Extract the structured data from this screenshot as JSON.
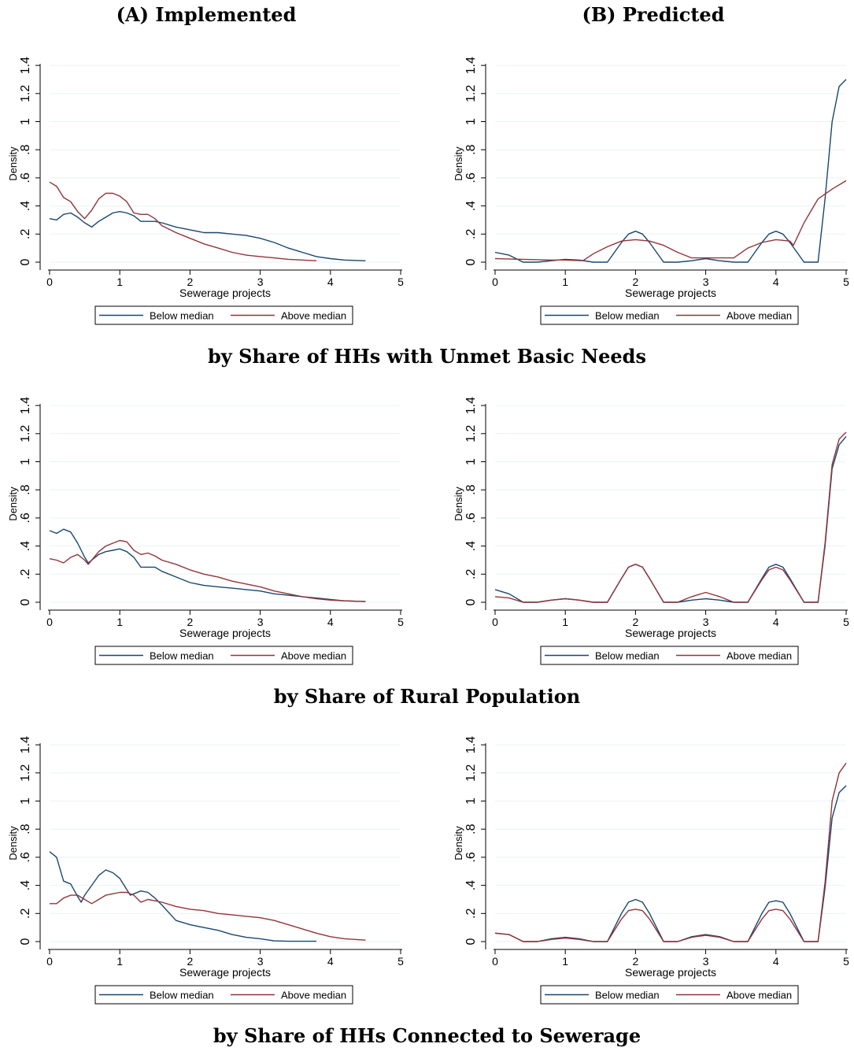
{
  "figure": {
    "col_titles": [
      "(A) Implemented",
      "(B) Predicted"
    ],
    "row_titles": [
      "by Share of HHs with Unmet Basic Needs",
      "by Share of Rural Population",
      "by Share of HHs Connected to Sewerage"
    ]
  },
  "colors": {
    "below_median": "#1a476f",
    "above_median": "#90353b"
  },
  "chart_data": [
    {
      "type": "line",
      "row": 0,
      "col": 0,
      "xlabel": "Sewerage projects",
      "ylabel": "Density",
      "xlim": [
        0,
        5
      ],
      "ylim": [
        0,
        1.4
      ],
      "xticks": [
        "0",
        "1",
        "2",
        "3",
        "4",
        "5"
      ],
      "yticks": [
        "0",
        ".2",
        ".4",
        ".6",
        ".8",
        "1",
        "1.2",
        "1.4"
      ],
      "grid": true,
      "legend_position": "bottom",
      "series": [
        {
          "name": "Below median",
          "x": [
            0,
            0.1,
            0.2,
            0.3,
            0.4,
            0.5,
            0.6,
            0.7,
            0.8,
            0.9,
            1.0,
            1.1,
            1.2,
            1.3,
            1.4,
            1.5,
            1.6,
            1.8,
            2.0,
            2.2,
            2.4,
            2.6,
            2.8,
            3.0,
            3.2,
            3.4,
            3.6,
            3.8,
            4.0,
            4.2,
            4.5
          ],
          "y": [
            0.31,
            0.3,
            0.34,
            0.35,
            0.32,
            0.28,
            0.25,
            0.29,
            0.32,
            0.35,
            0.36,
            0.35,
            0.33,
            0.29,
            0.29,
            0.29,
            0.28,
            0.25,
            0.23,
            0.21,
            0.21,
            0.2,
            0.19,
            0.17,
            0.14,
            0.1,
            0.07,
            0.04,
            0.025,
            0.015,
            0.01
          ]
        },
        {
          "name": "Above median",
          "x": [
            0,
            0.1,
            0.2,
            0.3,
            0.4,
            0.5,
            0.6,
            0.7,
            0.8,
            0.9,
            1.0,
            1.1,
            1.2,
            1.3,
            1.4,
            1.5,
            1.6,
            1.8,
            2.0,
            2.2,
            2.4,
            2.6,
            2.8,
            3.0,
            3.2,
            3.4,
            3.6,
            3.8
          ],
          "y": [
            0.57,
            0.54,
            0.46,
            0.43,
            0.36,
            0.31,
            0.37,
            0.45,
            0.49,
            0.49,
            0.47,
            0.43,
            0.35,
            0.34,
            0.34,
            0.31,
            0.26,
            0.21,
            0.17,
            0.13,
            0.1,
            0.07,
            0.05,
            0.04,
            0.03,
            0.02,
            0.015,
            0.01
          ]
        }
      ]
    },
    {
      "type": "line",
      "row": 0,
      "col": 1,
      "xlabel": "Sewerage projects",
      "ylabel": "Density",
      "xlim": [
        0,
        5
      ],
      "ylim": [
        0,
        1.4
      ],
      "xticks": [
        "0",
        "1",
        "2",
        "3",
        "4",
        "5"
      ],
      "yticks": [
        "0",
        ".2",
        ".4",
        ".6",
        ".8",
        "1",
        "1.2",
        "1.4"
      ],
      "grid": true,
      "legend_position": "bottom",
      "series": [
        {
          "name": "Below median",
          "x": [
            0,
            0.2,
            0.4,
            0.6,
            0.8,
            1.0,
            1.2,
            1.4,
            1.6,
            1.8,
            1.9,
            2.0,
            2.1,
            2.2,
            2.4,
            2.6,
            2.8,
            3.0,
            3.2,
            3.4,
            3.6,
            3.8,
            3.9,
            4.0,
            4.1,
            4.2,
            4.4,
            4.6,
            4.7,
            4.8,
            4.9,
            5.0
          ],
          "y": [
            0.07,
            0.05,
            0.0,
            0.0,
            0.01,
            0.02,
            0.015,
            0.0,
            0.0,
            0.14,
            0.2,
            0.22,
            0.2,
            0.14,
            0.0,
            0.0,
            0.01,
            0.025,
            0.01,
            0.0,
            0.0,
            0.14,
            0.2,
            0.22,
            0.2,
            0.14,
            0.0,
            0.0,
            0.45,
            1.0,
            1.25,
            1.3
          ]
        },
        {
          "name": "Above median",
          "x": [
            0,
            0.4,
            0.8,
            1.0,
            1.25,
            1.4,
            1.6,
            1.8,
            2.0,
            2.2,
            2.4,
            2.6,
            2.8,
            3.0,
            3.2,
            3.4,
            3.6,
            3.8,
            4.0,
            4.2,
            4.25,
            4.4,
            4.6,
            4.8,
            5.0
          ],
          "y": [
            0.025,
            0.02,
            0.015,
            0.015,
            0.01,
            0.06,
            0.11,
            0.15,
            0.16,
            0.15,
            0.12,
            0.07,
            0.03,
            0.03,
            0.03,
            0.03,
            0.1,
            0.14,
            0.16,
            0.15,
            0.12,
            0.28,
            0.45,
            0.52,
            0.58
          ]
        }
      ]
    },
    {
      "type": "line",
      "row": 1,
      "col": 0,
      "xlabel": "Sewerage projects",
      "ylabel": "Density",
      "xlim": [
        0,
        5
      ],
      "ylim": [
        0,
        1.4
      ],
      "xticks": [
        "0",
        "1",
        "2",
        "3",
        "4",
        "5"
      ],
      "yticks": [
        "0",
        ".2",
        ".4",
        ".6",
        ".8",
        "1",
        "1.2",
        "1.4"
      ],
      "grid": true,
      "legend_position": "bottom",
      "series": [
        {
          "name": "Below median",
          "x": [
            0,
            0.1,
            0.2,
            0.3,
            0.4,
            0.5,
            0.55,
            0.6,
            0.7,
            0.8,
            0.9,
            1.0,
            1.1,
            1.2,
            1.3,
            1.4,
            1.5,
            1.6,
            1.8,
            2.0,
            2.2,
            2.4,
            2.6,
            2.8,
            3.0,
            3.2,
            3.4,
            3.6,
            3.8,
            4.0,
            4.2,
            4.5
          ],
          "y": [
            0.51,
            0.49,
            0.52,
            0.5,
            0.42,
            0.32,
            0.28,
            0.3,
            0.34,
            0.36,
            0.37,
            0.38,
            0.36,
            0.32,
            0.25,
            0.25,
            0.25,
            0.22,
            0.18,
            0.14,
            0.12,
            0.11,
            0.1,
            0.09,
            0.08,
            0.06,
            0.05,
            0.04,
            0.03,
            0.02,
            0.01,
            0.005
          ]
        },
        {
          "name": "Above median",
          "x": [
            0,
            0.1,
            0.2,
            0.3,
            0.4,
            0.5,
            0.55,
            0.6,
            0.7,
            0.8,
            0.9,
            1.0,
            1.1,
            1.2,
            1.3,
            1.4,
            1.5,
            1.6,
            1.8,
            2.0,
            2.2,
            2.4,
            2.6,
            2.8,
            3.0,
            3.2,
            3.4,
            3.6,
            3.8,
            4.0,
            4.2,
            4.5
          ],
          "y": [
            0.31,
            0.3,
            0.28,
            0.32,
            0.34,
            0.3,
            0.27,
            0.3,
            0.36,
            0.4,
            0.42,
            0.44,
            0.43,
            0.37,
            0.34,
            0.35,
            0.33,
            0.3,
            0.27,
            0.23,
            0.2,
            0.18,
            0.15,
            0.13,
            0.11,
            0.08,
            0.06,
            0.04,
            0.025,
            0.015,
            0.01,
            0.005
          ]
        }
      ]
    },
    {
      "type": "line",
      "row": 1,
      "col": 1,
      "xlabel": "Sewerage projects",
      "ylabel": "Density",
      "xlim": [
        0,
        5
      ],
      "ylim": [
        0,
        1.4
      ],
      "xticks": [
        "0",
        "1",
        "2",
        "3",
        "4",
        "5"
      ],
      "yticks": [
        "0",
        ".2",
        ".4",
        ".6",
        ".8",
        "1",
        "1.2",
        "1.4"
      ],
      "grid": true,
      "legend_position": "bottom",
      "series": [
        {
          "name": "Below median",
          "x": [
            0,
            0.2,
            0.4,
            0.6,
            0.8,
            1.0,
            1.2,
            1.4,
            1.6,
            1.8,
            1.9,
            2.0,
            2.1,
            2.2,
            2.4,
            2.6,
            2.8,
            3.0,
            3.2,
            3.4,
            3.6,
            3.8,
            3.9,
            4.0,
            4.1,
            4.2,
            4.4,
            4.6,
            4.7,
            4.8,
            4.9,
            5.0
          ],
          "y": [
            0.09,
            0.06,
            0.0,
            0.0,
            0.015,
            0.025,
            0.015,
            0.0,
            0.0,
            0.17,
            0.25,
            0.27,
            0.25,
            0.17,
            0.0,
            0.0,
            0.015,
            0.025,
            0.015,
            0.0,
            0.0,
            0.17,
            0.25,
            0.27,
            0.25,
            0.17,
            0.0,
            0.0,
            0.4,
            0.95,
            1.12,
            1.18
          ]
        },
        {
          "name": "Above median",
          "x": [
            0,
            0.2,
            0.4,
            0.6,
            0.8,
            1.0,
            1.2,
            1.4,
            1.6,
            1.8,
            1.9,
            2.0,
            2.1,
            2.2,
            2.4,
            2.6,
            2.8,
            3.0,
            3.2,
            3.4,
            3.6,
            3.8,
            3.9,
            4.0,
            4.1,
            4.2,
            4.4,
            4.6,
            4.7,
            4.8,
            4.9,
            5.0
          ],
          "y": [
            0.04,
            0.03,
            0.0,
            0.0,
            0.015,
            0.025,
            0.015,
            0.0,
            0.0,
            0.17,
            0.25,
            0.27,
            0.25,
            0.17,
            0.0,
            0.0,
            0.04,
            0.07,
            0.04,
            0.0,
            0.0,
            0.16,
            0.23,
            0.25,
            0.23,
            0.16,
            0.0,
            0.0,
            0.42,
            0.98,
            1.16,
            1.21
          ]
        }
      ]
    },
    {
      "type": "line",
      "row": 2,
      "col": 0,
      "xlabel": "Sewerage projects",
      "ylabel": "Density",
      "xlim": [
        0,
        5
      ],
      "ylim": [
        0,
        1.4
      ],
      "xticks": [
        "0",
        "1",
        "2",
        "3",
        "4",
        "5"
      ],
      "yticks": [
        "0",
        ".2",
        ".4",
        ".6",
        ".8",
        "1",
        "1.2",
        "1.4"
      ],
      "grid": true,
      "legend_position": "bottom",
      "series": [
        {
          "name": "Below median",
          "x": [
            0,
            0.1,
            0.2,
            0.3,
            0.4,
            0.45,
            0.5,
            0.6,
            0.7,
            0.8,
            0.9,
            1.0,
            1.1,
            1.15,
            1.2,
            1.3,
            1.4,
            1.5,
            1.6,
            1.8,
            2.0,
            2.2,
            2.4,
            2.6,
            2.8,
            3.0,
            3.2,
            3.4,
            3.6,
            3.8
          ],
          "y": [
            0.64,
            0.6,
            0.43,
            0.41,
            0.32,
            0.28,
            0.33,
            0.4,
            0.47,
            0.51,
            0.49,
            0.45,
            0.37,
            0.33,
            0.34,
            0.36,
            0.35,
            0.31,
            0.26,
            0.15,
            0.12,
            0.1,
            0.08,
            0.05,
            0.03,
            0.02,
            0.005,
            0.002,
            0.002,
            0.002
          ]
        },
        {
          "name": "Above median",
          "x": [
            0,
            0.1,
            0.2,
            0.3,
            0.4,
            0.5,
            0.6,
            0.7,
            0.8,
            0.9,
            1.0,
            1.1,
            1.2,
            1.3,
            1.4,
            1.5,
            1.6,
            1.8,
            2.0,
            2.2,
            2.4,
            2.6,
            2.8,
            3.0,
            3.2,
            3.4,
            3.6,
            3.8,
            4.0,
            4.2,
            4.5
          ],
          "y": [
            0.27,
            0.27,
            0.31,
            0.33,
            0.33,
            0.3,
            0.27,
            0.3,
            0.33,
            0.34,
            0.35,
            0.35,
            0.33,
            0.28,
            0.3,
            0.29,
            0.28,
            0.25,
            0.23,
            0.22,
            0.2,
            0.19,
            0.18,
            0.17,
            0.15,
            0.12,
            0.09,
            0.06,
            0.035,
            0.02,
            0.01
          ]
        }
      ]
    },
    {
      "type": "line",
      "row": 2,
      "col": 1,
      "xlabel": "Sewerage projects",
      "ylabel": "Density",
      "xlim": [
        0,
        5
      ],
      "ylim": [
        0,
        1.4
      ],
      "xticks": [
        "0",
        "1",
        "2",
        "3",
        "4",
        "5"
      ],
      "yticks": [
        "0",
        ".2",
        ".4",
        ".6",
        ".8",
        "1",
        "1.2",
        "1.4"
      ],
      "grid": true,
      "legend_position": "bottom",
      "series": [
        {
          "name": "Below median",
          "x": [
            0,
            0.2,
            0.4,
            0.6,
            0.8,
            1.0,
            1.2,
            1.4,
            1.6,
            1.8,
            1.9,
            2.0,
            2.1,
            2.2,
            2.4,
            2.6,
            2.8,
            3.0,
            3.2,
            3.4,
            3.6,
            3.8,
            3.9,
            4.0,
            4.1,
            4.2,
            4.4,
            4.6,
            4.7,
            4.8,
            4.9,
            5.0
          ],
          "y": [
            0.06,
            0.05,
            0.0,
            0.0,
            0.02,
            0.03,
            0.02,
            0.0,
            0.0,
            0.2,
            0.28,
            0.3,
            0.28,
            0.2,
            0.0,
            0.0,
            0.035,
            0.05,
            0.035,
            0.0,
            0.0,
            0.2,
            0.28,
            0.29,
            0.28,
            0.2,
            0.0,
            0.0,
            0.38,
            0.88,
            1.06,
            1.11
          ]
        },
        {
          "name": "Above median",
          "x": [
            0,
            0.2,
            0.4,
            0.6,
            0.8,
            1.0,
            1.2,
            1.4,
            1.6,
            1.8,
            1.9,
            2.0,
            2.1,
            2.2,
            2.4,
            2.6,
            2.8,
            3.0,
            3.2,
            3.4,
            3.6,
            3.8,
            3.9,
            4.0,
            4.1,
            4.2,
            4.4,
            4.6,
            4.7,
            4.8,
            4.9,
            5.0
          ],
          "y": [
            0.06,
            0.05,
            0.0,
            0.0,
            0.015,
            0.025,
            0.015,
            0.0,
            0.0,
            0.16,
            0.22,
            0.23,
            0.22,
            0.16,
            0.0,
            0.0,
            0.03,
            0.045,
            0.03,
            0.0,
            0.0,
            0.16,
            0.22,
            0.23,
            0.22,
            0.16,
            0.0,
            0.0,
            0.42,
            1.0,
            1.2,
            1.27
          ]
        }
      ]
    }
  ]
}
